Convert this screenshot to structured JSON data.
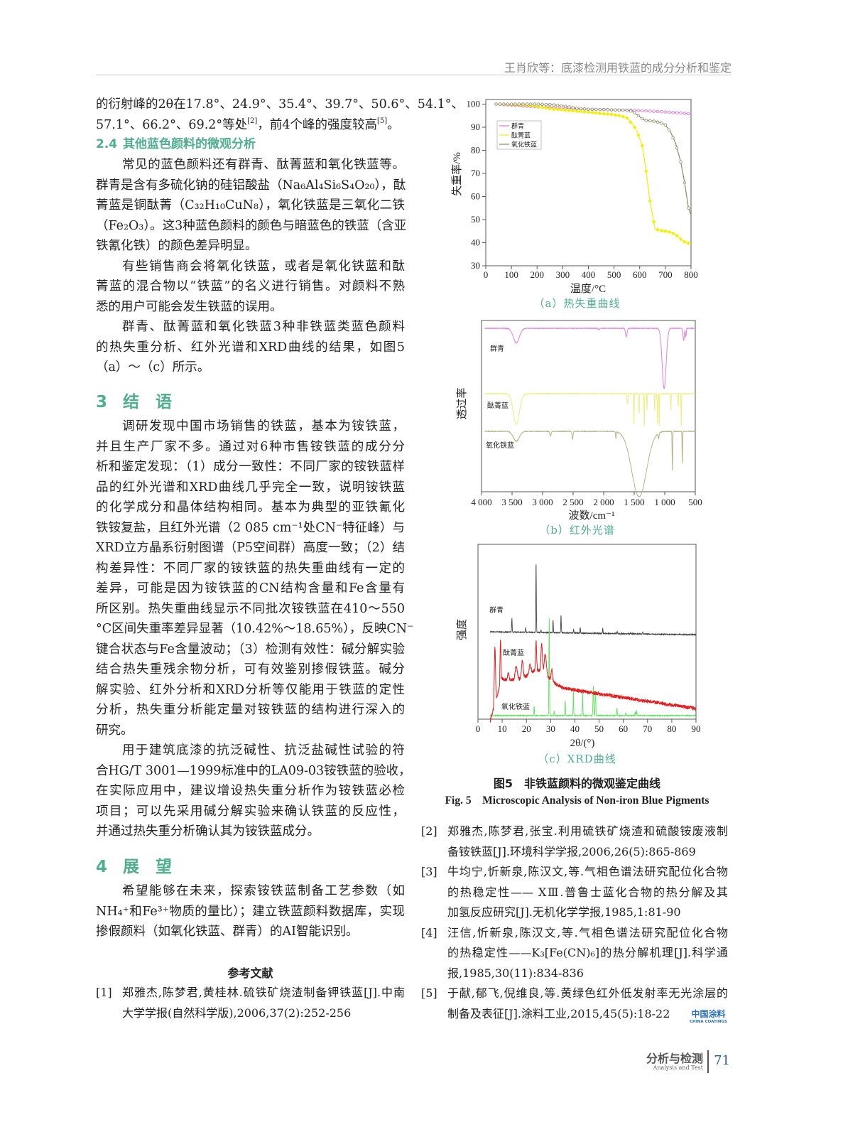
{
  "header": {
    "running_title": "王肖欣等：底漆检测用铁蓝的成分分析和鉴定"
  },
  "left_column": {
    "intro_lines": [
      [
        {
          "t": "的衍射峰的2θ在17.8°、24.9°、35.4°、39.7°、50.6°、54.1°、"
        }
      ],
      [
        {
          "t": "57.1°、66.2°、69.2°等处"
        },
        {
          "t": "[2]",
          "sup": true
        },
        {
          "t": "，前4个峰的强度较高"
        },
        {
          "t": "[5]",
          "sup": true
        },
        {
          "t": "。"
        }
      ]
    ],
    "section_2_4": {
      "number": "2.4",
      "title": "其他蓝色颜料的微观分析"
    },
    "paragraphs_2_4": [
      [
        "常见的蓝色颜料还有群青、酞菁蓝和氧化铁蓝等。",
        "群青是含有多硫化钠的硅铝酸盐（Na₆Al₄Si₆S₄O₂₀），酞",
        "菁蓝是铜酞菁（C₃₂H₁₀CuN₈），氧化铁蓝是三氧化二铁",
        "（Fe₂O₃）。这3种蓝色颜料的颜色与暗蓝色的铁蓝（含亚",
        "铁氰化铁）的颜色差异明显。"
      ],
      [
        "有些销售商会将氧化铁蓝，或者是氧化铁蓝和酞",
        "菁蓝的混合物以“铁蓝”的名义进行销售。对颜料不熟",
        "悉的用户可能会发生铁蓝的误用。"
      ],
      [
        "群青、酞菁蓝和氧化铁蓝3种非铁蓝类蓝色颜料",
        "的热失重分析、红外光谱和XRD曲线的结果，如图5",
        "（a）～（c）所示。"
      ]
    ],
    "section_3": {
      "number": "3",
      "title": "结　语"
    },
    "paragraphs_3": [
      [
        "调研发现中国市场销售的铁蓝，基本为铵铁蓝，",
        "并且生产厂家不多。通过对6种市售铵铁蓝的成分分",
        "析和鉴定发现：（1）成分一致性：不同厂家的铵铁蓝样",
        "品的红外光谱和XRD曲线几乎完全一致，说明铵铁蓝",
        "的化学成分和晶体结构相同。基本为典型的亚铁氰化",
        "铁铵复盐，且红外光谱（2 085 cm⁻¹处CN⁻特征峰）与",
        "XRD立方晶系衍射图谱（P5空间群）高度一致；（2）结",
        "构差异性：不同厂家的铵铁蓝的热失重曲线有一定的",
        "差异，可能是因为铵铁蓝的CN结构含量和Fe含量有",
        "所区别。热失重曲线显示不同批次铵铁蓝在410～550",
        "°C区间失重率差异显著（10.42%～18.65%），反映CN⁻",
        "键合状态与Fe含量波动；（3）检测有效性：碱分解实验",
        "结合热失重残余物分析，可有效鉴别掺假铁蓝。碱分",
        "解实验、红外分析和XRD分析等仅能用于铁蓝的定性",
        "分析，热失重分析能定量对铵铁蓝的结构进行深入的",
        "研究。"
      ],
      [
        "用于建筑底漆的抗泛碱性、抗泛盐碱性试验的符",
        "合HG/T 3001—1999标准中的LA09-03铵铁蓝的验收，",
        "在实际应用中，建议增设热失重分析作为铵铁蓝必检",
        "项目；可以先采用碱分解实验来确认铁蓝的反应性，",
        "并通过热失重分析确认其为铵铁蓝成分。"
      ]
    ],
    "section_4": {
      "number": "4",
      "title": "展　望"
    },
    "paragraphs_4": [
      [
        "希望能够在未来，探索铵铁蓝制备工艺参数（如",
        "NH₄⁺和Fe³⁺物质的量比）；建立铁蓝颜料数据库，实现",
        "掺假颜料（如氧化铁蓝、群青）的AI智能识别。"
      ]
    ]
  },
  "references": {
    "title": "参考文献",
    "left": [
      {
        "num": "[1]",
        "lines": [
          "郑雅杰,陈梦君,黄桂林.硫铁矿烧渣制备钾铁蓝[J].中南",
          "大学学报(自然科学版),2006,37(2):252-256"
        ]
      }
    ],
    "right": [
      {
        "num": "[2]",
        "lines": [
          "郑雅杰,陈梦君,张宝.利用硫铁矿烧渣和硫酸铵废液制",
          "备铵铁蓝[J].环境科学学报,2006,26(5):865-869"
        ]
      },
      {
        "num": "[3]",
        "lines": [
          "牛均宁,忻新泉,陈汉文,等.气相色谱法研究配位化合物",
          "的热稳定性—— XⅢ.普鲁士蓝化合物的热分解及其",
          "加氢反应研究[J].无机化学学报,1985,1:81-90"
        ]
      },
      {
        "num": "[4]",
        "lines": [
          "汪信,忻新泉,陈汉文,等.气相色谱法研究配位化合物",
          "的热稳定性——K₃[Fe(CN)₆]的热分解机理[J].科学通",
          "报,1985,30(11):834-836"
        ]
      },
      {
        "num": "[5]",
        "lines": [
          "于献,郁飞,倪维良,等.黄绿色红外低发射率无光涂层的",
          "制备及表征[J].涂料工业,2015,45(5):18-22"
        ]
      }
    ]
  },
  "figure": {
    "title_cn": "图5　非铁蓝颜料的微观鉴定曲线",
    "title_en": "Fig. 5　Microscopic Analysis of Non-iron Blue Pigments",
    "captions": [
      "（a）热失重曲线",
      "（b）红外光谱",
      "（c）XRD曲线"
    ]
  },
  "chart_data": [
    {
      "type": "line",
      "caption": "（a）热失重曲线",
      "xlabel": "温度/°C",
      "ylabel": "失重率/%",
      "xlim": [
        0,
        800
      ],
      "ylim": [
        30,
        102
      ],
      "xticks": [
        0,
        100,
        200,
        300,
        400,
        500,
        600,
        700,
        800
      ],
      "yticks": [
        30,
        40,
        50,
        60,
        70,
        80,
        90,
        100
      ],
      "grid": false,
      "legend": "top-left",
      "series": [
        {
          "name": "群青",
          "color": "#e070e0",
          "marker": "open-triangle",
          "x": [
            40,
            100,
            200,
            300,
            400,
            500,
            600,
            700,
            800
          ],
          "y": [
            100,
            99.5,
            98.8,
            98.2,
            97.8,
            97.5,
            97.2,
            96.6,
            95.8
          ]
        },
        {
          "name": "酞菁蓝",
          "color": "#f2f000",
          "marker": "filled-circle",
          "x": [
            40,
            150,
            200,
            250,
            300,
            400,
            500,
            530,
            550,
            575,
            590,
            610,
            625,
            640,
            660,
            680,
            700,
            720,
            740,
            760,
            780,
            800
          ],
          "y": [
            100,
            99.6,
            99,
            98,
            97.5,
            96.5,
            95.4,
            94.8,
            94,
            91,
            88,
            82,
            71,
            58,
            46,
            45.3,
            45,
            44.5,
            43.5,
            41.5,
            40,
            39.5
          ]
        },
        {
          "name": "氧化铁蓝",
          "color": "#8c8c68",
          "marker": "open-circle",
          "x": [
            40,
            200,
            250,
            300,
            350,
            400,
            500,
            560,
            580,
            600,
            620,
            650,
            680,
            700,
            720,
            740,
            760,
            775,
            790,
            800
          ],
          "y": [
            100,
            100,
            99.8,
            99.2,
            98.3,
            97.8,
            97.5,
            97.2,
            96.3,
            94.5,
            93,
            92.7,
            92,
            91,
            88,
            83,
            75,
            66,
            55,
            52
          ]
        }
      ]
    },
    {
      "type": "line",
      "caption": "（b）红外光谱",
      "xlabel": "波数/cm⁻¹",
      "ylabel": "透过率",
      "xlim": [
        4000,
        500
      ],
      "xticks": [
        4000,
        3500,
        3000,
        2500,
        2000,
        1500,
        1000,
        500
      ],
      "xtick_labels": [
        "4 000",
        "3 500",
        "3 000",
        "2 500",
        "2 000",
        "1 500",
        "1 000",
        "500"
      ],
      "yticks": [],
      "grid": false,
      "legend": "inline-labels",
      "series": [
        {
          "name": "群青",
          "color": "#e080e0",
          "bands": [
            [
              3430,
              0.24,
              70
            ],
            [
              2080,
              0.03,
              15
            ],
            [
              1630,
              0.14,
              18
            ],
            [
              1010,
              1.0,
              45
            ],
            [
              690,
              0.2,
              14
            ],
            [
              655,
              0.14,
              10
            ]
          ]
        },
        {
          "name": "酞菁蓝",
          "color": "#eeee80",
          "bands": [
            [
              3430,
              0.9,
              70
            ],
            [
              1610,
              0.3,
              10
            ],
            [
              1505,
              0.9,
              6
            ],
            [
              1420,
              0.6,
              6
            ],
            [
              1335,
              1.0,
              5
            ],
            [
              1290,
              0.5,
              5
            ],
            [
              1165,
              0.5,
              5
            ],
            [
              1120,
              0.9,
              6
            ],
            [
              1090,
              1.0,
              5
            ],
            [
              900,
              0.5,
              5
            ],
            [
              780,
              0.4,
              5
            ],
            [
              730,
              1.0,
              5
            ]
          ]
        },
        {
          "name": "氧化铁蓝",
          "color": "#b4b488",
          "bands": [
            [
              3430,
              0.15,
              70
            ],
            [
              2870,
              0.07,
              15
            ],
            [
              2510,
              0.12,
              12
            ],
            [
              1800,
              0.1,
              8
            ],
            [
              1420,
              1.0,
              170
            ],
            [
              1100,
              0.08,
              10
            ],
            [
              875,
              0.6,
              6
            ],
            [
              712,
              0.5,
              6
            ]
          ]
        }
      ]
    },
    {
      "type": "line",
      "caption": "（c）XRD曲线",
      "xlabel": "2θ/(°)",
      "ylabel": "强度",
      "xlim": [
        0,
        90
      ],
      "xticks": [
        0,
        10,
        20,
        30,
        40,
        50,
        60,
        70,
        80,
        90
      ],
      "yticks": [],
      "grid": false,
      "legend": "inline-labels",
      "series": [
        {
          "name": "群青",
          "color": "#444444",
          "peaks": [
            [
              14,
              0.2,
              0.15
            ],
            [
              19.7,
              0.07,
              0.15
            ],
            [
              24,
              1.0,
              0.15
            ],
            [
              26,
              0.04,
              0.15
            ],
            [
              31,
              0.18,
              0.15
            ],
            [
              34.3,
              0.25,
              0.15
            ],
            [
              39.5,
              0.05,
              0.15
            ],
            [
              42.2,
              0.08,
              0.15
            ],
            [
              51.5,
              0.07,
              0.15
            ],
            [
              57.5,
              0.03,
              0.15
            ],
            [
              63,
              0.02,
              0.15
            ],
            [
              68,
              0.03,
              0.15
            ]
          ]
        },
        {
          "name": "酞菁蓝",
          "color": "#e02020",
          "peaks": [
            [
              7,
              1.0,
              0.35
            ],
            [
              9.3,
              0.7,
              0.25
            ],
            [
              12.5,
              0.12,
              0.4
            ],
            [
              15.8,
              0.25,
              0.6
            ],
            [
              18.3,
              0.3,
              0.5
            ],
            [
              21.5,
              0.15,
              0.5
            ],
            [
              24,
              0.5,
              0.3
            ],
            [
              26.3,
              0.5,
              0.4
            ],
            [
              27.8,
              0.35,
              0.6
            ],
            [
              30.5,
              0.2,
              0.4
            ],
            [
              25,
              0.25,
              6
            ]
          ]
        },
        {
          "name": "氧化铁蓝",
          "color": "#60e060",
          "peaks": [
            [
              23.2,
              0.1,
              0.15
            ],
            [
              29.4,
              1.0,
              0.15
            ],
            [
              31.5,
              0.05,
              0.15
            ],
            [
              36,
              0.15,
              0.15
            ],
            [
              39.4,
              0.25,
              0.15
            ],
            [
              43.2,
              0.23,
              0.15
            ],
            [
              47.6,
              0.3,
              0.2
            ],
            [
              48.5,
              0.25,
              0.2
            ],
            [
              57.4,
              0.08,
              0.15
            ],
            [
              61,
              0.03,
              0.15
            ],
            [
              64.9,
              0.04,
              0.15
            ],
            [
              65.5,
              0.05,
              0.15
            ]
          ]
        }
      ]
    }
  ],
  "logo": {
    "cn": "中国涂料",
    "en": "CHINA COATINGS"
  },
  "footer": {
    "section": "分析与检测",
    "section_en": "Analysis and Test",
    "page": "71"
  }
}
